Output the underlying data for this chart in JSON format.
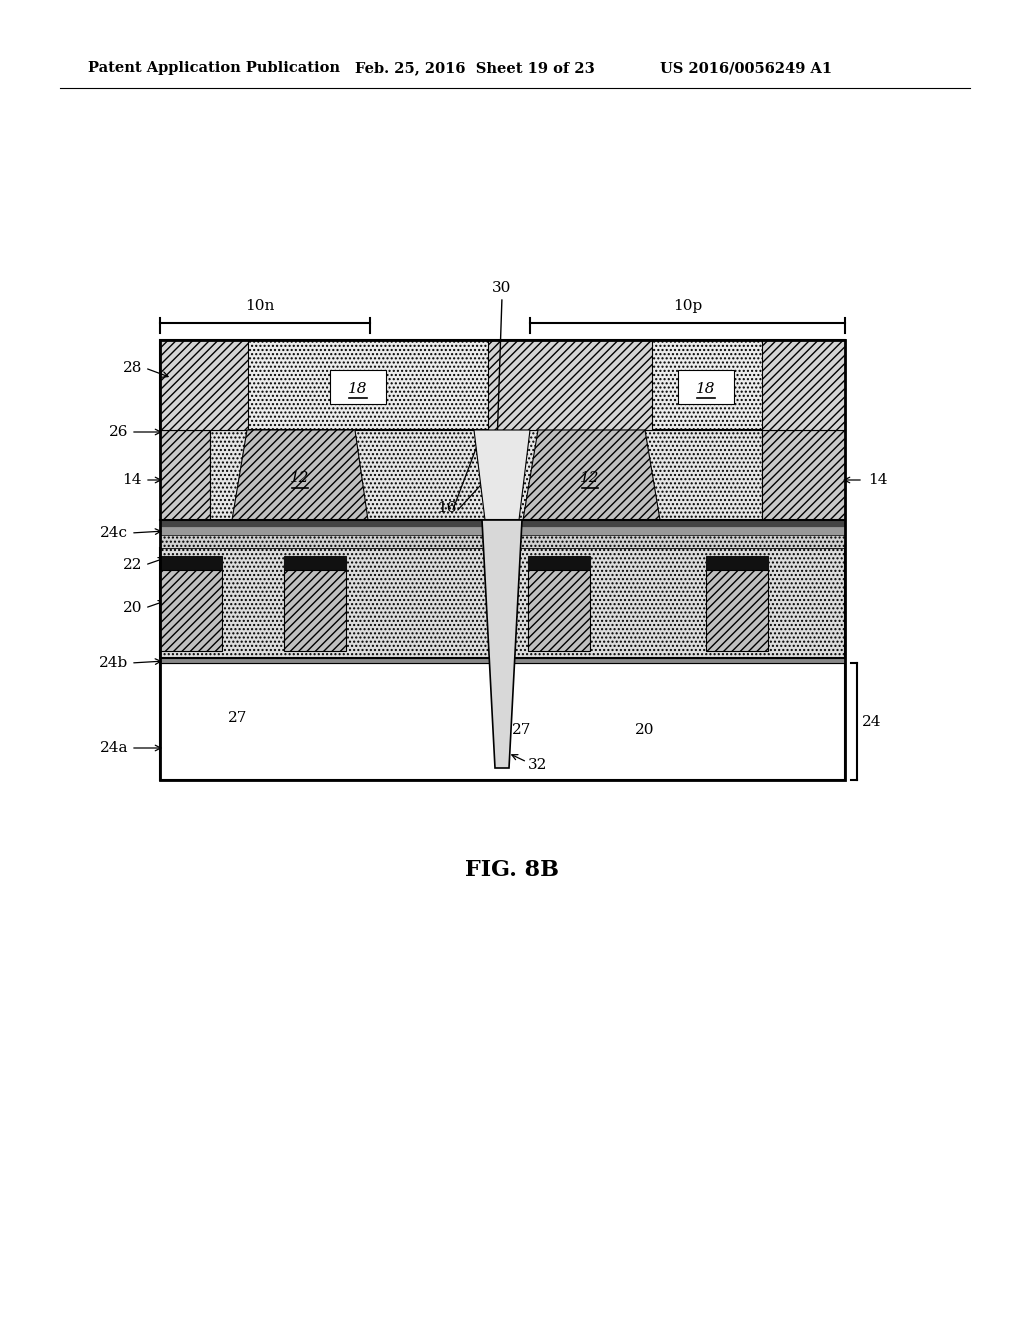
{
  "header_left": "Patent Application Publication",
  "header_mid": "Feb. 25, 2016  Sheet 19 of 23",
  "header_right": "US 2016/0056249 A1",
  "fig_label": "FIG. 8B",
  "bg_color": "#ffffff",
  "line_color": "#000000"
}
